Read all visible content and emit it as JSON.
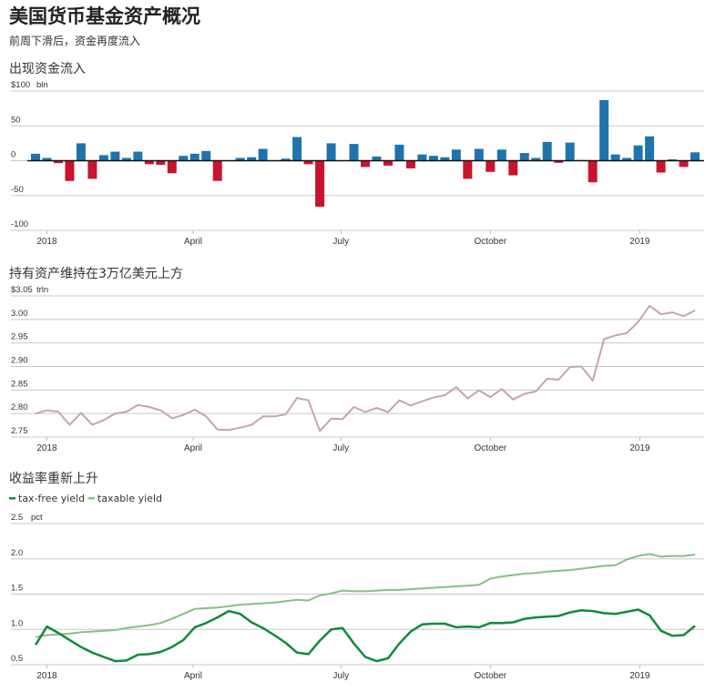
{
  "header": {
    "title": "美国货币基金资产概况",
    "subtitle": "前周下滑后，资金再度流入"
  },
  "colors": {
    "inflow": "#1f74ad",
    "outflow": "#c8142f",
    "assets": "#c6a2ba",
    "tax_free": "#118a3c",
    "taxable": "#84c185"
  },
  "chart_data": [
    {
      "type": "bar",
      "title": "出现资金流入",
      "unit_label": "bln",
      "ylim": [
        -100,
        100
      ],
      "yticks": [
        100,
        50,
        0,
        -50,
        -100
      ],
      "ytick_labels": [
        "$100",
        "50",
        "0",
        "-50",
        "-100"
      ],
      "xticks": [
        {
          "date": "2018-01-01",
          "label": "2018"
        },
        {
          "date": "2018-04-01",
          "label": "April"
        },
        {
          "date": "2018-07-01",
          "label": "July"
        },
        {
          "date": "2018-10-01",
          "label": "October"
        },
        {
          "date": "2019-01-01",
          "label": "2019"
        }
      ],
      "grid": true,
      "values": [
        10,
        4,
        -3.5,
        -29,
        25,
        -26,
        8,
        13,
        4,
        13,
        -5,
        -6,
        -18,
        7,
        10,
        14,
        -29,
        0,
        4,
        5,
        17,
        0,
        3,
        34,
        -5,
        -66,
        25,
        0,
        24,
        -9,
        6,
        -7,
        23,
        -11,
        9,
        7,
        5,
        16,
        -26,
        17,
        -16,
        16,
        -21,
        11,
        4,
        27,
        -3,
        26,
        1,
        -31,
        87,
        9,
        4,
        22,
        35,
        -17,
        2,
        -9,
        12
      ]
    },
    {
      "type": "line",
      "title": "持有资产维持在3万亿美元上方",
      "unit_label": "trln",
      "ylim": [
        2.75,
        3.05
      ],
      "yticks": [
        3.05,
        3.0,
        2.95,
        2.9,
        2.85,
        2.8,
        2.75
      ],
      "ytick_labels": [
        "$3.05",
        "3.00",
        "2.95",
        "2.90",
        "2.85",
        "2.80",
        "2.75"
      ],
      "xticks": [
        {
          "date": "2018-01-01",
          "label": "2018"
        },
        {
          "date": "2018-04-01",
          "label": "April"
        },
        {
          "date": "2018-07-01",
          "label": "July"
        },
        {
          "date": "2018-10-01",
          "label": "October"
        },
        {
          "date": "2019-01-01",
          "label": "2019"
        }
      ],
      "grid": true,
      "values": [
        2.8,
        2.807,
        2.804,
        2.776,
        2.801,
        2.776,
        2.786,
        2.8,
        2.804,
        2.818,
        2.814,
        2.807,
        2.79,
        2.797,
        2.808,
        2.794,
        2.766,
        2.765,
        2.77,
        2.776,
        2.794,
        2.794,
        2.798,
        2.833,
        2.828,
        2.763,
        2.789,
        2.788,
        2.814,
        2.803,
        2.812,
        2.803,
        2.828,
        2.817,
        2.826,
        2.834,
        2.839,
        2.856,
        2.832,
        2.849,
        2.835,
        2.852,
        2.83,
        2.842,
        2.847,
        2.874,
        2.872,
        2.899,
        2.9,
        2.87,
        2.958,
        2.966,
        2.971,
        2.995,
        3.029,
        3.011,
        3.015,
        3.007,
        3.019
      ]
    },
    {
      "type": "line",
      "title": "收益率重新上升",
      "unit_label": "pct",
      "ylim": [
        0.5,
        2.5
      ],
      "yticks": [
        2.5,
        2.0,
        1.5,
        1.0,
        0.5
      ],
      "ytick_labels": [
        "2.5",
        "2.0",
        "1.5",
        "1.0",
        "0.5"
      ],
      "xticks": [
        {
          "date": "2018-01-01",
          "label": "2018"
        },
        {
          "date": "2018-04-01",
          "label": "April"
        },
        {
          "date": "2018-07-01",
          "label": "July"
        },
        {
          "date": "2018-10-01",
          "label": "October"
        },
        {
          "date": "2019-01-01",
          "label": "2019"
        }
      ],
      "grid": true,
      "legend_position": "top-left",
      "series": [
        {
          "name": "tax-free yield",
          "values": [
            0.78,
            1.04,
            0.95,
            0.85,
            0.75,
            0.67,
            0.61,
            0.55,
            0.56,
            0.64,
            0.65,
            0.68,
            0.75,
            0.85,
            1.03,
            1.09,
            1.17,
            1.26,
            1.22,
            1.1,
            1.02,
            0.92,
            0.81,
            0.67,
            0.65,
            0.84,
            1.0,
            1.02,
            0.8,
            0.61,
            0.55,
            0.59,
            0.8,
            0.97,
            1.07,
            1.08,
            1.08,
            1.03,
            1.04,
            1.03,
            1.09,
            1.09,
            1.1,
            1.15,
            1.17,
            1.18,
            1.19,
            1.24,
            1.27,
            1.26,
            1.23,
            1.22,
            1.25,
            1.28,
            1.2,
            0.98,
            0.91,
            0.92,
            1.05
          ]
        },
        {
          "name": "taxable yield",
          "values": [
            0.89,
            0.92,
            0.93,
            0.94,
            0.96,
            0.97,
            0.98,
            0.99,
            1.02,
            1.04,
            1.06,
            1.09,
            1.15,
            1.22,
            1.29,
            1.3,
            1.31,
            1.33,
            1.35,
            1.36,
            1.37,
            1.38,
            1.4,
            1.42,
            1.41,
            1.48,
            1.51,
            1.55,
            1.54,
            1.54,
            1.55,
            1.56,
            1.56,
            1.57,
            1.58,
            1.59,
            1.6,
            1.61,
            1.62,
            1.63,
            1.72,
            1.75,
            1.77,
            1.79,
            1.8,
            1.82,
            1.83,
            1.84,
            1.86,
            1.88,
            1.9,
            1.91,
            1.99,
            2.04,
            2.07,
            2.03,
            2.04,
            2.04,
            2.06
          ]
        }
      ]
    }
  ],
  "dates": [
    "2017-12-25",
    "2018-01-01",
    "2018-01-08",
    "2018-01-15",
    "2018-01-22",
    "2018-01-29",
    "2018-02-05",
    "2018-02-12",
    "2018-02-19",
    "2018-02-26",
    "2018-03-05",
    "2018-03-12",
    "2018-03-19",
    "2018-03-26",
    "2018-04-02",
    "2018-04-09",
    "2018-04-16",
    "2018-04-23",
    "2018-04-30",
    "2018-05-07",
    "2018-05-14",
    "2018-05-21",
    "2018-05-28",
    "2018-06-04",
    "2018-06-11",
    "2018-06-18",
    "2018-06-25",
    "2018-07-02",
    "2018-07-09",
    "2018-07-16",
    "2018-07-23",
    "2018-07-30",
    "2018-08-06",
    "2018-08-13",
    "2018-08-20",
    "2018-08-27",
    "2018-09-03",
    "2018-09-10",
    "2018-09-17",
    "2018-09-24",
    "2018-10-01",
    "2018-10-08",
    "2018-10-15",
    "2018-10-22",
    "2018-10-29",
    "2018-11-05",
    "2018-11-12",
    "2018-11-19",
    "2018-11-26",
    "2018-12-03",
    "2018-12-10",
    "2018-12-17",
    "2018-12-24",
    "2018-12-31",
    "2019-01-07",
    "2019-01-14",
    "2019-01-21",
    "2019-01-28",
    "2019-02-04"
  ]
}
